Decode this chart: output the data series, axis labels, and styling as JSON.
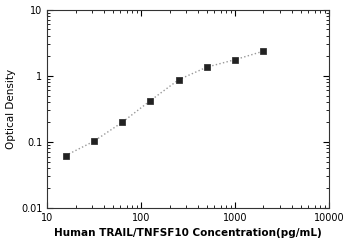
{
  "x": [
    15.625,
    31.25,
    62.5,
    125,
    250,
    500,
    1000,
    2000
  ],
  "y": [
    0.062,
    0.102,
    0.197,
    0.42,
    0.87,
    1.35,
    1.75,
    2.35
  ],
  "marker": "s",
  "marker_color": "#222222",
  "marker_size": 4,
  "line_color": "#999999",
  "line_style": ":",
  "line_width": 1.0,
  "xlabel": "Human TRAIL/TNFSF10 Concentration(pg/mL)",
  "ylabel": "Optical Density",
  "xlabel_fontsize": 7.5,
  "ylabel_fontsize": 7.5,
  "xlim": [
    10,
    10000
  ],
  "ylim": [
    0.01,
    10
  ],
  "xticks": [
    10,
    100,
    1000,
    10000
  ],
  "yticks": [
    0.01,
    0.1,
    1,
    10
  ],
  "ytick_labels": [
    "0.01",
    "0.1",
    "1",
    "10"
  ],
  "xtick_labels": [
    "10",
    "100",
    "1000",
    "10000"
  ],
  "tick_fontsize": 7,
  "background_color": "#ffffff"
}
